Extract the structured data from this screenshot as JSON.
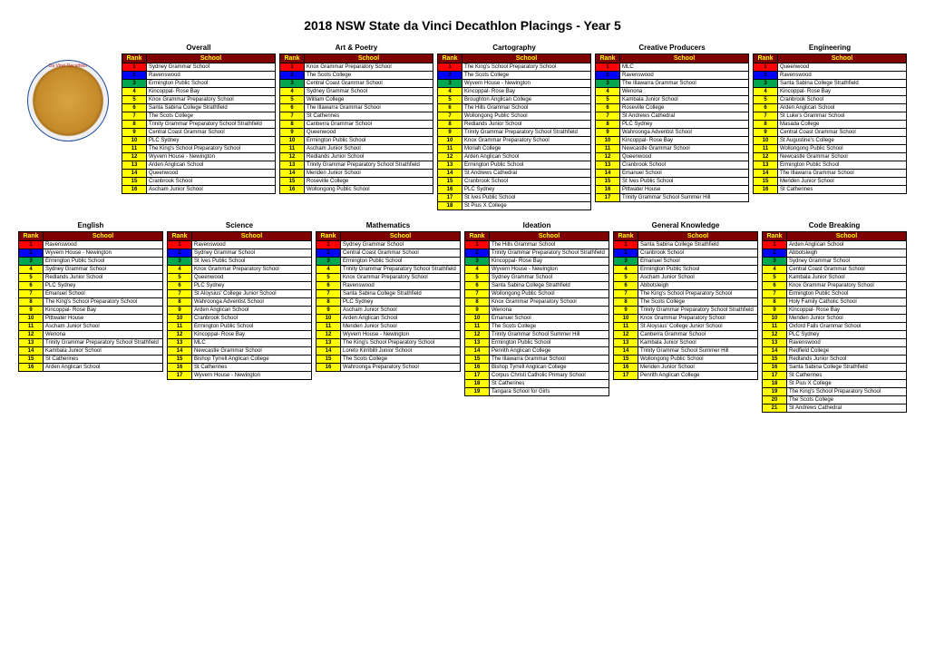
{
  "title": "2018 NSW State da Vinci Decathlon Placings - Year 5",
  "logo_text_top": "Da Vinci Decathlon",
  "headers": {
    "rank": "Rank",
    "school": "School"
  },
  "rank_colors": {
    "1": "#ff0000",
    "2": "#0000ff",
    "3": "#00a650",
    "default": "#ffff00"
  },
  "row1": [
    {
      "name": "Overall",
      "rows": [
        [
          1,
          "Sydney Grammar School"
        ],
        [
          2,
          "Ravenswood"
        ],
        [
          3,
          "Ermington Public School"
        ],
        [
          4,
          "Kincoppal- Rose Bay"
        ],
        [
          5,
          "Knox Grammar Preparatory School"
        ],
        [
          6,
          "Santa Sabina College Strathfield"
        ],
        [
          7,
          "The Scots College"
        ],
        [
          8,
          "Trinity Grammar Preparatory School Strathfield"
        ],
        [
          9,
          "Central Coast Grammar School"
        ],
        [
          10,
          "PLC Sydney"
        ],
        [
          11,
          "The King's School Preparatory School"
        ],
        [
          12,
          "Wyvern House - Newington"
        ],
        [
          13,
          "Arden Anglican School"
        ],
        [
          14,
          "Queenwood"
        ],
        [
          15,
          "Cranbrook School"
        ],
        [
          16,
          "Ascham Junior School"
        ]
      ]
    },
    {
      "name": "Art & Poetry",
      "rows": [
        [
          1,
          "Knox Grammar Preparatory School"
        ],
        [
          2,
          "The Scots College"
        ],
        [
          3,
          "Central Coast Grammar School"
        ],
        [
          4,
          "Sydney Grammar School"
        ],
        [
          5,
          "William College"
        ],
        [
          6,
          "The Illawarra Grammar School"
        ],
        [
          7,
          "St Catherines"
        ],
        [
          8,
          "Canberra Grammar School"
        ],
        [
          9,
          "Queenwood"
        ],
        [
          10,
          "Ermington Public School"
        ],
        [
          11,
          "Ascham Junior School"
        ],
        [
          12,
          "Redlands Junior School"
        ],
        [
          13,
          "Trinity Grammar Preparatory School Strathfield"
        ],
        [
          14,
          "Meriden Junior School"
        ],
        [
          15,
          "Roseville College"
        ],
        [
          16,
          "Wollongong Public School"
        ]
      ]
    },
    {
      "name": "Cartography",
      "rows": [
        [
          1,
          "The King's School Preparatory School"
        ],
        [
          2,
          "The Scots College"
        ],
        [
          3,
          "Wyvern House - Newington"
        ],
        [
          4,
          "Kincoppal- Rose Bay"
        ],
        [
          5,
          "Broughton Anglican College"
        ],
        [
          6,
          "The Hills Grammar School"
        ],
        [
          7,
          "Wollongong Public School"
        ],
        [
          8,
          "Redlands Junior School"
        ],
        [
          9,
          "Trinity Grammar Preparatory School Strathfield"
        ],
        [
          10,
          "Knox Grammar Preparatory School"
        ],
        [
          11,
          "Moriah College"
        ],
        [
          12,
          "Arden Anglican School"
        ],
        [
          13,
          "Ermington Public School"
        ],
        [
          14,
          "St Andrews Cathedral"
        ],
        [
          15,
          "Cranbrook School"
        ],
        [
          16,
          "PLC Sydney"
        ],
        [
          17,
          "St Ives Public School"
        ],
        [
          18,
          "St Pius X College"
        ]
      ]
    },
    {
      "name": "Creative Producers",
      "rows": [
        [
          1,
          "MLC"
        ],
        [
          2,
          "Ravenswood"
        ],
        [
          3,
          "The Illawarra Grammar School"
        ],
        [
          4,
          "Wenona"
        ],
        [
          5,
          "Kambala Junior School"
        ],
        [
          6,
          "Roseville College"
        ],
        [
          7,
          "St Andrews Cathedral"
        ],
        [
          8,
          "PLC Sydney"
        ],
        [
          9,
          "Wahroonga Adventist School"
        ],
        [
          10,
          "Kincoppal- Rose Bay"
        ],
        [
          11,
          "Newcastle Grammar School"
        ],
        [
          12,
          "Queenwood"
        ],
        [
          13,
          "Cranbrook School"
        ],
        [
          14,
          "Emanuel School"
        ],
        [
          15,
          "St Ives Public School"
        ],
        [
          16,
          "Pittwater House"
        ],
        [
          17,
          "Trinity Grammar School Summer Hill"
        ]
      ]
    },
    {
      "name": "Engineering",
      "rows": [
        [
          1,
          "Queenwood"
        ],
        [
          2,
          "Ravenswood"
        ],
        [
          3,
          "Santa Sabina College Strathfield"
        ],
        [
          4,
          "Kincoppal- Rose Bay"
        ],
        [
          5,
          "Cranbrook School"
        ],
        [
          6,
          "Arden Anglican School"
        ],
        [
          7,
          "St Luke's Grammar School"
        ],
        [
          8,
          "Masada College"
        ],
        [
          9,
          "Central Coast Grammar School"
        ],
        [
          10,
          "St Augustine's College"
        ],
        [
          11,
          "Wollongong Public School"
        ],
        [
          12,
          "Newcastle Grammar School"
        ],
        [
          13,
          "Ermington Public School"
        ],
        [
          14,
          "The Illawarra Grammar School"
        ],
        [
          15,
          "Meriden Junior School"
        ],
        [
          16,
          "St Catherines"
        ]
      ]
    }
  ],
  "row2": [
    {
      "name": "English",
      "rows": [
        [
          1,
          "Ravenswood"
        ],
        [
          2,
          "Wyvern House - Newington"
        ],
        [
          3,
          "Ermington Public School"
        ],
        [
          4,
          "Sydney Grammar School"
        ],
        [
          5,
          "Redlands Junior School"
        ],
        [
          6,
          "PLC Sydney"
        ],
        [
          7,
          "Emanuel School"
        ],
        [
          8,
          "The King's School Preparatory School"
        ],
        [
          9,
          "Kincoppal- Rose Bay"
        ],
        [
          10,
          "Pittwater House"
        ],
        [
          11,
          "Ascham Junior School"
        ],
        [
          12,
          "Wenona"
        ],
        [
          13,
          "Trinity Grammar Preparatory School Strathfield"
        ],
        [
          14,
          "Kambala Junior School"
        ],
        [
          15,
          "St Catherines"
        ],
        [
          16,
          "Arden Anglican School"
        ]
      ]
    },
    {
      "name": "Science",
      "rows": [
        [
          1,
          "Ravenswood"
        ],
        [
          2,
          "Sydney Grammar School"
        ],
        [
          3,
          "St Ives Public School"
        ],
        [
          4,
          "Knox Grammar Preparatory School"
        ],
        [
          5,
          "Queenwood"
        ],
        [
          6,
          "PLC Sydney"
        ],
        [
          7,
          "St Aloysius' College Junior School"
        ],
        [
          8,
          "Wahroonga Adventist School"
        ],
        [
          9,
          "Arden Anglican School"
        ],
        [
          10,
          "Cranbrook School"
        ],
        [
          11,
          "Ermington Public School"
        ],
        [
          12,
          "Kincoppal- Rose Bay"
        ],
        [
          13,
          "MLC"
        ],
        [
          14,
          "Newcastle Grammar School"
        ],
        [
          15,
          "Bishop Tyrrell Anglican College"
        ],
        [
          16,
          "St Catherines"
        ],
        [
          17,
          "Wyvern House - Newington"
        ]
      ]
    },
    {
      "name": "Mathematics",
      "rows": [
        [
          1,
          "Sydney Grammar School"
        ],
        [
          2,
          "Central Coast Grammar School"
        ],
        [
          3,
          "Ermington Public School"
        ],
        [
          4,
          "Trinity Grammar Preparatory School Strathfield"
        ],
        [
          5,
          "Knox Grammar Preparatory School"
        ],
        [
          6,
          "Ravenswood"
        ],
        [
          7,
          "Santa Sabina College Strathfield"
        ],
        [
          8,
          "PLC Sydney"
        ],
        [
          9,
          "Ascham Junior School"
        ],
        [
          10,
          "Arden Anglican School"
        ],
        [
          11,
          "Meriden Junior School"
        ],
        [
          12,
          "Wyvern House - Newington"
        ],
        [
          13,
          "The King's School Preparatory School"
        ],
        [
          14,
          "Loreto Kirribilli Junior School"
        ],
        [
          15,
          "The Scots College"
        ],
        [
          16,
          "Wahroonga Preparatory School"
        ]
      ]
    },
    {
      "name": "Ideation",
      "rows": [
        [
          1,
          "The Hills Grammar School"
        ],
        [
          2,
          "Trinity Grammar Preparatory School Strathfield"
        ],
        [
          3,
          "Kincoppal- Rose Bay"
        ],
        [
          4,
          "Wyvern House - Newington"
        ],
        [
          5,
          "Sydney Grammar School"
        ],
        [
          6,
          "Santa Sabina College Strathfield"
        ],
        [
          7,
          "Wollongong Public School"
        ],
        [
          8,
          "Knox Grammar Preparatory School"
        ],
        [
          9,
          "Wenona"
        ],
        [
          10,
          "Emanuel School"
        ],
        [
          11,
          "The Scots College"
        ],
        [
          12,
          "Trinity Grammar School Summer Hill"
        ],
        [
          13,
          "Ermington Public School"
        ],
        [
          14,
          "Penrith Anglican College"
        ],
        [
          15,
          "The Illawarra Grammar School"
        ],
        [
          16,
          "Bishop Tyrrell Anglican College"
        ],
        [
          17,
          "Corpus Christi Catholic Primary School"
        ],
        [
          18,
          "St Catherines"
        ],
        [
          19,
          "Tangara School for Girls"
        ]
      ]
    },
    {
      "name": "General Knowledge",
      "rows": [
        [
          1,
          "Santa Sabina College Strathfield"
        ],
        [
          2,
          "Cranbrook School"
        ],
        [
          3,
          "Emanuel School"
        ],
        [
          4,
          "Ermington Public School"
        ],
        [
          5,
          "Ascham Junior School"
        ],
        [
          6,
          "Abbotsleigh"
        ],
        [
          7,
          "The King's School Preparatory School"
        ],
        [
          8,
          "The Scots College"
        ],
        [
          9,
          "Trinity Grammar Preparatory School Strathfield"
        ],
        [
          10,
          "Knox Grammar Preparatory School"
        ],
        [
          11,
          "St Aloysius' College Junior School"
        ],
        [
          12,
          "Canberra Grammar School"
        ],
        [
          13,
          "Kambala Junior School"
        ],
        [
          14,
          "Trinity Grammar School Summer Hill"
        ],
        [
          15,
          "Wollongong Public School"
        ],
        [
          16,
          "Meriden Junior School"
        ],
        [
          17,
          "Penrith Anglican College"
        ]
      ]
    },
    {
      "name": "Code Breaking",
      "rows": [
        [
          1,
          "Arden Anglican School"
        ],
        [
          2,
          "Abbotsleigh"
        ],
        [
          3,
          "Sydney Grammar School"
        ],
        [
          4,
          "Central Coast Grammar School"
        ],
        [
          5,
          "Kambala Junior School"
        ],
        [
          6,
          "Knox Grammar Preparatory School"
        ],
        [
          7,
          "Ermington Public School"
        ],
        [
          8,
          "Holy Family Catholic School"
        ],
        [
          9,
          "Kincoppal- Rose Bay"
        ],
        [
          10,
          "Meriden Junior School"
        ],
        [
          11,
          "Oxford Falls Grammar School"
        ],
        [
          12,
          "PLC Sydney"
        ],
        [
          13,
          "Ravenswood"
        ],
        [
          14,
          "Redfield College"
        ],
        [
          15,
          "Redlands Junior School"
        ],
        [
          16,
          "Santa Sabina College Strathfield"
        ],
        [
          17,
          "St Catherines"
        ],
        [
          18,
          "St Pius X College"
        ],
        [
          19,
          "The King's School Preparatory School"
        ],
        [
          20,
          "The Scots College"
        ],
        [
          21,
          "St Andrews Cathedral"
        ]
      ]
    }
  ]
}
